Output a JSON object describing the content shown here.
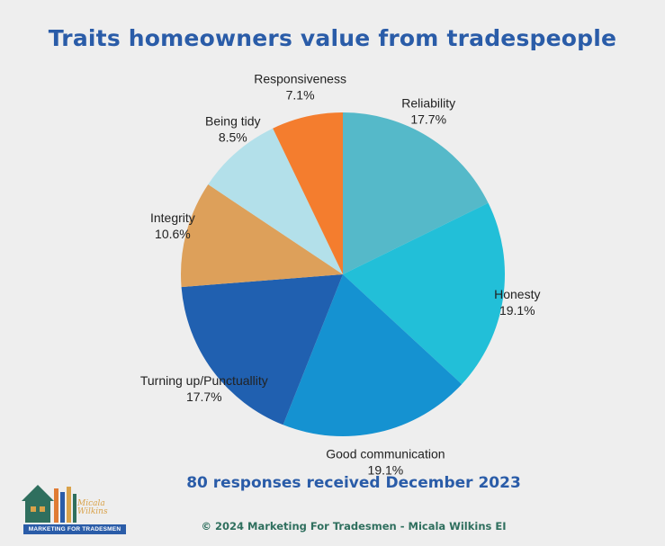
{
  "title": "Traits homeowners value from tradespeople",
  "subtitle": "80 responses received December 2023",
  "footer": "© 2024 Marketing For Tradesmen - Micala Wilkins EI",
  "logo": {
    "name": "Micala Wilkins",
    "tagline": "MARKETING FOR TRADESMEN"
  },
  "chart_data": {
    "type": "pie",
    "title": "Traits homeowners value from tradespeople",
    "start_angle_deg": 0,
    "direction": "clockwise",
    "slices": [
      {
        "label": "Reliability",
        "value": 17.7,
        "value_label": "17.7%",
        "color": "#55b9c9"
      },
      {
        "label": "Honesty",
        "value": 19.1,
        "value_label": "19.1%",
        "color": "#22bfd8"
      },
      {
        "label": "Good communication",
        "value": 19.1,
        "value_label": "19.1%",
        "color": "#1592d1"
      },
      {
        "label": "Turning up/Punctuallity",
        "value": 17.7,
        "value_label": "17.7%",
        "color": "#2060b0"
      },
      {
        "label": "Integrity",
        "value": 10.6,
        "value_label": "10.6%",
        "color": "#dda05a"
      },
      {
        "label": "Being tidy",
        "value": 8.5,
        "value_label": "8.5%",
        "color": "#b3e0ea"
      },
      {
        "label": "Responsiveness",
        "value": 7.1,
        "value_label": "7.1%",
        "color": "#f47d2e"
      }
    ]
  }
}
